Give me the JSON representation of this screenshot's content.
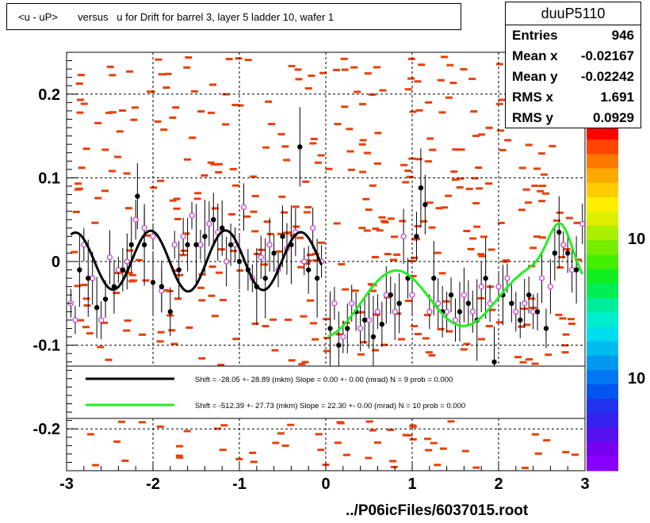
{
  "title": "<u - uP>       versus   u for Drift for barrel 3, layer 5 ladder 10, wafer 1",
  "stats": {
    "name": "duuP5110",
    "rows": [
      {
        "key": "Entries",
        "value": "946"
      },
      {
        "key": "Mean x",
        "value": "-0.02167"
      },
      {
        "key": "Mean y",
        "value": "-0.02242"
      },
      {
        "key": "RMS x",
        "value": "1.691"
      },
      {
        "key": "RMS y",
        "value": "0.0929"
      }
    ]
  },
  "footer": "../P06icFiles/6037015.root",
  "legend": [
    {
      "label": "Shift =   -28.05 +- 28.89 (mkm) Slope =     0.00 +- 0.00 (mrad)  N = 9 prob = 0.000",
      "color": "#000000"
    },
    {
      "label": "Shift =  -512.39 +- 27.73 (mkm) Slope =    22.30 +- 0.00 (mrad)  N = 10 prob = 0.000",
      "color": "#22ee22"
    }
  ],
  "colorbar_labels": [
    "10",
    "10"
  ],
  "chart_data": {
    "type": "scatter",
    "xlim": [
      -3,
      3
    ],
    "ylim": [
      -0.25,
      0.25
    ],
    "x_ticks": [
      -3,
      -2,
      -1,
      0,
      1,
      2,
      3
    ],
    "x_tick_labels": [
      "-3",
      "-2",
      "-1",
      "0",
      "1",
      "2",
      "3"
    ],
    "y_ticks": [
      -0.2,
      -0.1,
      0,
      0.1,
      0.2
    ],
    "y_tick_labels": [
      "-0.2",
      "-0.1",
      "0",
      "0.1",
      "0.2"
    ],
    "grid": true,
    "colors": {
      "cells": "#e8400a",
      "black_fit": "#000000",
      "green_fit": "#22ee22",
      "open_markers": "#cc44cc"
    },
    "black_points": [
      {
        "x": -2.85,
        "y": -0.01
      },
      {
        "x": -2.75,
        "y": -0.02
      },
      {
        "x": -2.65,
        "y": -0.055
      },
      {
        "x": -2.55,
        "y": -0.045
      },
      {
        "x": -2.45,
        "y": -0.03
      },
      {
        "x": -2.35,
        "y": -0.01
      },
      {
        "x": -2.25,
        "y": 0.02
      },
      {
        "x": -2.18,
        "y": 0.078
      },
      {
        "x": -2.1,
        "y": 0.02
      },
      {
        "x": -2.0,
        "y": -0.025
      },
      {
        "x": -1.9,
        "y": -0.03
      },
      {
        "x": -1.8,
        "y": -0.06
      },
      {
        "x": -1.7,
        "y": -0.01
      },
      {
        "x": -1.6,
        "y": 0.02
      },
      {
        "x": -1.5,
        "y": 0.02
      },
      {
        "x": -1.4,
        "y": 0.03
      },
      {
        "x": -1.3,
        "y": 0.05
      },
      {
        "x": -1.2,
        "y": 0.04
      },
      {
        "x": -1.1,
        "y": 0.02
      },
      {
        "x": -1.0,
        "y": 0.0
      },
      {
        "x": -0.9,
        "y": -0.01
      },
      {
        "x": -0.8,
        "y": -0.03
      },
      {
        "x": -0.7,
        "y": -0.02
      },
      {
        "x": -0.6,
        "y": 0.01
      },
      {
        "x": -0.5,
        "y": 0.03
      },
      {
        "x": -0.4,
        "y": 0.02
      },
      {
        "x": -0.3,
        "y": 0.137
      },
      {
        "x": -0.2,
        "y": -0.01
      },
      {
        "x": -0.1,
        "y": -0.02
      },
      {
        "x": 0.05,
        "y": -0.08
      },
      {
        "x": 0.15,
        "y": -0.1
      },
      {
        "x": 0.25,
        "y": -0.08
      },
      {
        "x": 0.35,
        "y": -0.06
      },
      {
        "x": 0.45,
        "y": -0.07
      },
      {
        "x": 0.55,
        "y": -0.09
      },
      {
        "x": 0.65,
        "y": -0.075
      },
      {
        "x": 0.75,
        "y": -0.04
      },
      {
        "x": 0.85,
        "y": -0.05
      },
      {
        "x": 0.95,
        "y": -0.02
      },
      {
        "x": 1.05,
        "y": 0.03
      },
      {
        "x": 1.1,
        "y": 0.088
      },
      {
        "x": 1.15,
        "y": 0.068
      },
      {
        "x": 1.25,
        "y": -0.02
      },
      {
        "x": 1.35,
        "y": -0.06
      },
      {
        "x": 1.45,
        "y": -0.04
      },
      {
        "x": 1.55,
        "y": -0.06
      },
      {
        "x": 1.65,
        "y": -0.05
      },
      {
        "x": 1.75,
        "y": -0.07
      },
      {
        "x": 1.85,
        "y": -0.02
      },
      {
        "x": 1.95,
        "y": -0.12
      },
      {
        "x": 2.05,
        "y": -0.04
      },
      {
        "x": 2.15,
        "y": -0.05
      },
      {
        "x": 2.25,
        "y": -0.07
      },
      {
        "x": 2.35,
        "y": -0.04
      },
      {
        "x": 2.45,
        "y": -0.06
      },
      {
        "x": 2.55,
        "y": -0.08
      },
      {
        "x": 2.65,
        "y": 0.01
      },
      {
        "x": 2.7,
        "y": 0.035
      },
      {
        "x": 2.8,
        "y": 0.01
      },
      {
        "x": 2.9,
        "y": -0.01
      }
    ],
    "open_points": [
      {
        "x": -2.95,
        "y": -0.05
      },
      {
        "x": -2.9,
        "y": -0.07
      },
      {
        "x": -2.8,
        "y": 0.02
      },
      {
        "x": -2.7,
        "y": -0.02
      },
      {
        "x": -2.6,
        "y": -0.07
      },
      {
        "x": -2.5,
        "y": 0.005
      },
      {
        "x": -2.4,
        "y": -0.01
      },
      {
        "x": -2.3,
        "y": 0.0
      },
      {
        "x": -2.2,
        "y": 0.05
      },
      {
        "x": -2.1,
        "y": 0.04
      },
      {
        "x": -2.0,
        "y": 0.03
      },
      {
        "x": -1.9,
        "y": -0.035
      },
      {
        "x": -1.75,
        "y": 0.02
      },
      {
        "x": -1.65,
        "y": 0.03
      },
      {
        "x": -1.55,
        "y": 0.055
      },
      {
        "x": -1.45,
        "y": 0.02
      },
      {
        "x": -1.35,
        "y": 0.045
      },
      {
        "x": -1.25,
        "y": 0.035
      },
      {
        "x": -1.15,
        "y": 0.0
      },
      {
        "x": -1.05,
        "y": 0.02
      },
      {
        "x": -0.95,
        "y": 0.065
      },
      {
        "x": -0.85,
        "y": -0.02
      },
      {
        "x": -0.75,
        "y": 0.005
      },
      {
        "x": -0.65,
        "y": 0.02
      },
      {
        "x": -0.55,
        "y": -0.01
      },
      {
        "x": -0.45,
        "y": 0.015
      },
      {
        "x": -0.35,
        "y": 0.035
      },
      {
        "x": -0.25,
        "y": 0.0
      },
      {
        "x": -0.15,
        "y": 0.04
      },
      {
        "x": -0.05,
        "y": 0.0
      },
      {
        "x": 0.1,
        "y": -0.05
      },
      {
        "x": 0.2,
        "y": -0.09
      },
      {
        "x": 0.3,
        "y": -0.05
      },
      {
        "x": 0.4,
        "y": -0.08
      },
      {
        "x": 0.5,
        "y": -0.07
      },
      {
        "x": 0.6,
        "y": -0.06
      },
      {
        "x": 0.7,
        "y": -0.04
      },
      {
        "x": 0.8,
        "y": -0.06
      },
      {
        "x": 0.9,
        "y": 0.03
      },
      {
        "x": 1.0,
        "y": -0.04
      },
      {
        "x": 1.2,
        "y": -0.06
      },
      {
        "x": 1.3,
        "y": -0.05
      },
      {
        "x": 1.4,
        "y": -0.06
      },
      {
        "x": 1.5,
        "y": -0.07
      },
      {
        "x": 1.6,
        "y": -0.04
      },
      {
        "x": 1.7,
        "y": -0.06
      },
      {
        "x": 1.8,
        "y": -0.03
      },
      {
        "x": 1.9,
        "y": -0.05
      },
      {
        "x": 2.0,
        "y": -0.03
      },
      {
        "x": 2.1,
        "y": -0.02
      },
      {
        "x": 2.2,
        "y": -0.06
      },
      {
        "x": 2.3,
        "y": -0.05
      },
      {
        "x": 2.4,
        "y": -0.06
      },
      {
        "x": 2.5,
        "y": -0.02
      },
      {
        "x": 2.6,
        "y": -0.03
      },
      {
        "x": 2.75,
        "y": 0.02
      },
      {
        "x": 2.85,
        "y": -0.01
      },
      {
        "x": 2.97,
        "y": 0.045
      }
    ]
  }
}
